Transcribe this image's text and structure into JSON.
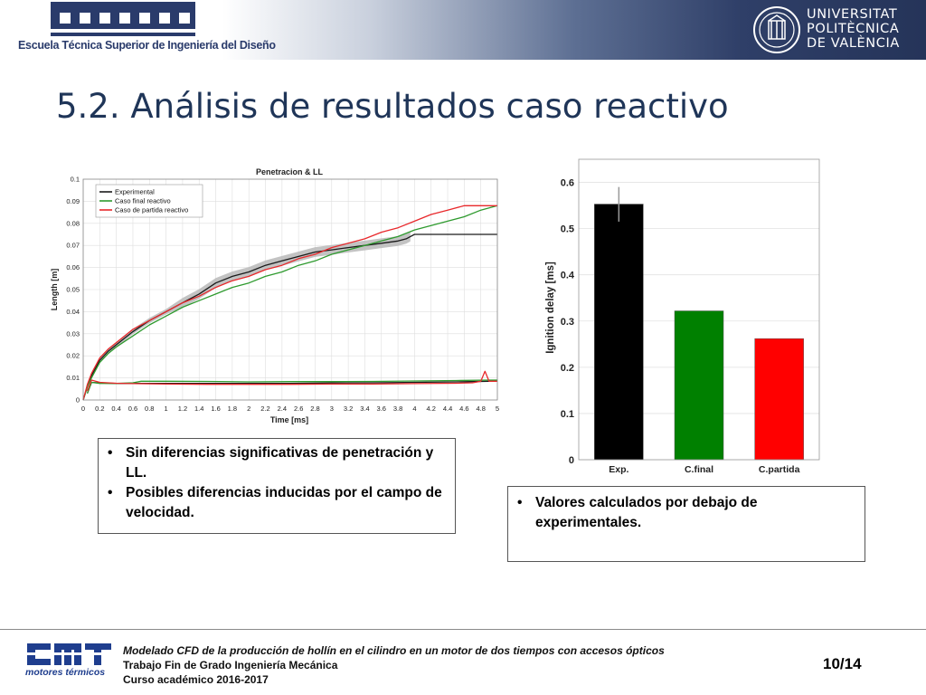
{
  "header": {
    "school_name": "Escuela Técnica Superior de Ingeniería del Diseño",
    "university_lines": [
      "UNIVERSITAT",
      "POLITÈCNICA",
      "DE VALÈNCIA"
    ],
    "etsid_logo_icon": "etsid-building-icon",
    "upv_seal_icon": "upv-seal-icon"
  },
  "slide": {
    "title": "5.2. Análisis de resultados caso reactivo"
  },
  "colors": {
    "experimental": "#1a1a1a",
    "caso_final": "#2e9a2e",
    "caso_partida": "#e8282b",
    "band": "#b8b8b8",
    "bar_exp": "#000000",
    "bar_final": "#008000",
    "bar_partida": "#ff0000",
    "title": "#1f3558"
  },
  "chart_data": [
    {
      "type": "line",
      "title": "Penetracion & LL",
      "xlabel": "Time [ms]",
      "ylabel": "Length [m]",
      "xlim": [
        0,
        5
      ],
      "ylim": [
        0,
        0.1
      ],
      "xticks": [
        "0",
        "0.2",
        "0.4",
        "0.6",
        "0.8",
        "1",
        "1.2",
        "1.4",
        "1.6",
        "1.8",
        "2",
        "2.2",
        "2.4",
        "2.6",
        "2.8",
        "3",
        "3.2",
        "3.4",
        "3.6",
        "3.8",
        "4",
        "4.2",
        "4.4",
        "4.6",
        "4.8",
        "5"
      ],
      "yticks": [
        "0",
        "0.01",
        "0.02",
        "0.03",
        "0.04",
        "0.05",
        "0.06",
        "0.07",
        "0.08",
        "0.09",
        "0.1"
      ],
      "grid": true,
      "legend_position": "top-left",
      "series": [
        {
          "name": "Experimental",
          "x": [
            0,
            0.05,
            0.1,
            0.2,
            0.3,
            0.4,
            0.6,
            0.8,
            1.0,
            1.2,
            1.4,
            1.6,
            1.8,
            2.0,
            2.2,
            2.4,
            2.6,
            2.8,
            3.0,
            3.2,
            3.4,
            3.6,
            3.8,
            3.9,
            3.95,
            4.0,
            4.2,
            4.4,
            4.6,
            4.8,
            5.0
          ],
          "y": [
            0,
            0.006,
            0.011,
            0.018,
            0.022,
            0.025,
            0.031,
            0.036,
            0.04,
            0.044,
            0.048,
            0.053,
            0.056,
            0.058,
            0.061,
            0.063,
            0.065,
            0.067,
            0.068,
            0.069,
            0.07,
            0.071,
            0.072,
            0.073,
            0.074,
            0.075,
            0.075,
            0.075,
            0.075,
            0.075,
            0.075
          ]
        },
        {
          "name": "Caso final reactivo",
          "x": [
            0,
            0.05,
            0.1,
            0.2,
            0.3,
            0.4,
            0.6,
            0.8,
            1.0,
            1.2,
            1.4,
            1.6,
            1.8,
            2.0,
            2.2,
            2.4,
            2.6,
            2.8,
            3.0,
            3.2,
            3.4,
            3.6,
            3.8,
            4.0,
            4.2,
            4.4,
            4.6,
            4.8,
            5.0
          ],
          "y": [
            0,
            0.006,
            0.01,
            0.017,
            0.021,
            0.024,
            0.029,
            0.034,
            0.038,
            0.042,
            0.045,
            0.048,
            0.051,
            0.053,
            0.056,
            0.058,
            0.061,
            0.063,
            0.066,
            0.068,
            0.07,
            0.072,
            0.074,
            0.077,
            0.079,
            0.081,
            0.083,
            0.086,
            0.088
          ]
        },
        {
          "name": "Caso de partida reactivo",
          "x": [
            0,
            0.05,
            0.1,
            0.2,
            0.3,
            0.4,
            0.6,
            0.8,
            1.0,
            1.2,
            1.4,
            1.6,
            1.8,
            2.0,
            2.2,
            2.4,
            2.6,
            2.8,
            3.0,
            3.2,
            3.4,
            3.6,
            3.8,
            4.0,
            4.2,
            4.4,
            4.6,
            4.8,
            5.0
          ],
          "y": [
            0,
            0.007,
            0.012,
            0.019,
            0.023,
            0.026,
            0.032,
            0.036,
            0.04,
            0.044,
            0.047,
            0.051,
            0.054,
            0.056,
            0.059,
            0.061,
            0.064,
            0.066,
            0.069,
            0.071,
            0.073,
            0.076,
            0.078,
            0.081,
            0.084,
            0.086,
            0.088,
            0.088,
            0.088
          ]
        },
        {
          "name": "",
          "role": "lift-off-experimental",
          "color_key": "experimental",
          "x": [
            0.05,
            0.1,
            0.2,
            0.4,
            0.6,
            1.0,
            1.5,
            2.0,
            2.5,
            3.0,
            3.5,
            4.0,
            4.5,
            4.9,
            5.0
          ],
          "y": [
            0.003,
            0.008,
            0.0077,
            0.0075,
            0.0075,
            0.0075,
            0.0075,
            0.0075,
            0.0075,
            0.0077,
            0.0078,
            0.008,
            0.0082,
            0.0085,
            0.0085
          ]
        },
        {
          "name": "",
          "role": "lift-off-final",
          "color_key": "caso_final",
          "x": [
            0.05,
            0.1,
            0.2,
            0.4,
            0.6,
            0.7,
            1.0,
            1.5,
            2.0,
            2.5,
            3.0,
            3.5,
            4.0,
            4.5,
            4.9,
            5.0
          ],
          "y": [
            0.003,
            0.008,
            0.0075,
            0.0075,
            0.0078,
            0.0085,
            0.0085,
            0.0084,
            0.0082,
            0.0083,
            0.0083,
            0.0084,
            0.0086,
            0.0088,
            0.009,
            0.009
          ]
        },
        {
          "name": "",
          "role": "lift-off-partida",
          "color_key": "caso_partida",
          "x": [
            0.05,
            0.1,
            0.2,
            0.4,
            0.6,
            1.0,
            1.5,
            2.0,
            2.5,
            3.0,
            3.5,
            4.0,
            4.5,
            4.7,
            4.8,
            4.85,
            4.9,
            5.0
          ],
          "y": [
            0.004,
            0.009,
            0.008,
            0.0076,
            0.0074,
            0.0072,
            0.0071,
            0.0071,
            0.0071,
            0.0072,
            0.0072,
            0.0074,
            0.0076,
            0.0078,
            0.0085,
            0.013,
            0.0085,
            0.0085
          ]
        }
      ]
    },
    {
      "type": "bar",
      "xlabel": "",
      "ylabel": "Ignition delay [ms]",
      "ylim": [
        0,
        0.65
      ],
      "yticks": [
        "0",
        "0.1",
        "0.2",
        "0.3",
        "0.4",
        "0.5",
        "0.6"
      ],
      "categories": [
        "Exp.",
        "C.final",
        "C.partida"
      ],
      "values": [
        0.553,
        0.322,
        0.262
      ],
      "error_range_exp": [
        0.515,
        0.59
      ]
    }
  ],
  "notes": {
    "left": [
      "Sin diferencias significativas de penetración y LL.",
      "Posibles diferencias inducidas por el campo de velocidad."
    ],
    "right": [
      "Valores calculados por debajo de experimentales."
    ]
  },
  "footer": {
    "cmt_sub": "motores térmicos",
    "cmt_logo_icon": "cmt-logo-icon",
    "line1": "Modelado CFD de la producción de hollín en el cilindro en un motor de dos tiempos con accesos ópticos",
    "line2": "Trabajo Fin de Grado Ingeniería Mecánica",
    "line3": "Curso académico 2016-2017",
    "page": "10/14"
  }
}
